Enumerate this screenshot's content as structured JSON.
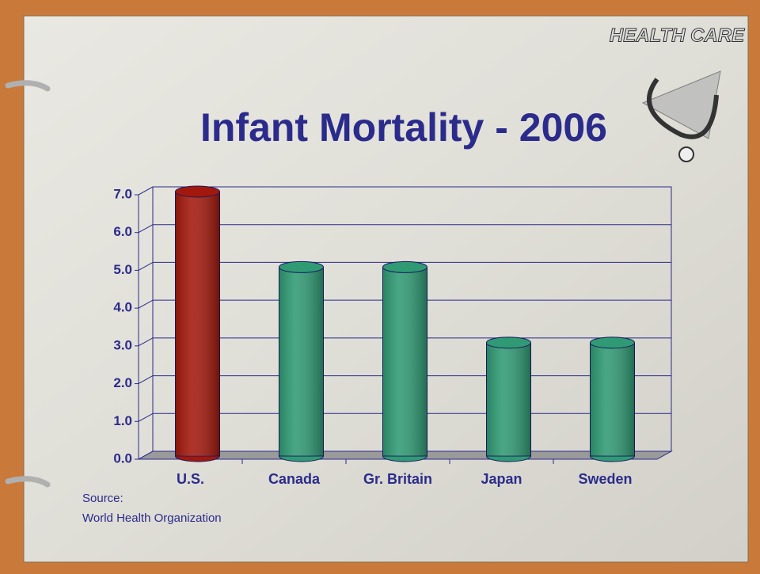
{
  "chart_data": {
    "type": "bar3d",
    "title": "Infant Mortality - 2006",
    "categories": [
      "U.S.",
      "Canada",
      "Gr. Britain",
      "Japan",
      "Sweden"
    ],
    "values": [
      7.0,
      5.0,
      5.0,
      3.0,
      3.0
    ],
    "colors": [
      "#a3180c",
      "#2f9a73",
      "#2f9a73",
      "#2f9a73",
      "#2f9a73"
    ],
    "ylim": [
      0,
      7
    ],
    "yticks": [
      {
        "value": 0,
        "label": "0.0"
      },
      {
        "value": 1,
        "label": "1.0"
      },
      {
        "value": 2,
        "label": "2.0"
      },
      {
        "value": 3,
        "label": "3.0"
      },
      {
        "value": 4,
        "label": "4.0"
      },
      {
        "value": 5,
        "label": "5.0"
      },
      {
        "value": 6,
        "label": "6.0"
      },
      {
        "value": 7,
        "label": "7.0"
      }
    ],
    "grid": true,
    "source_label": "Source:",
    "source": "World Health Organization",
    "logo_text": "HEALTH CARE"
  }
}
